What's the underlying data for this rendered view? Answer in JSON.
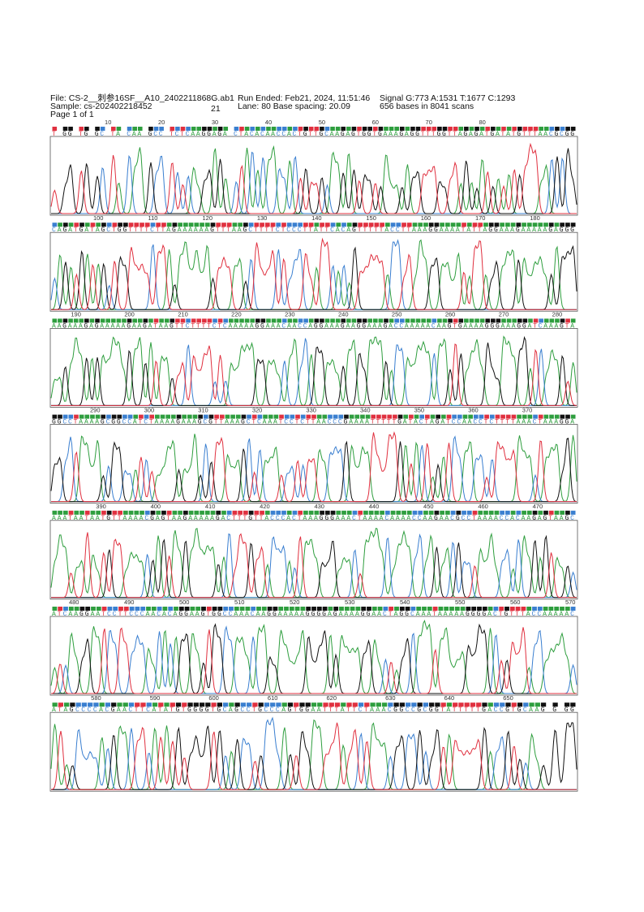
{
  "header": {
    "file": "File: CS-2__刺参16SF__A10_2402211868G.ab1",
    "sample": "Sample: cs-202402218452",
    "page": "Page 1 of 1",
    "number": "21",
    "run_ended": "Run Ended:  Feb21, 2024, 11:51:46",
    "lane": "Lane: 80   Base spacing: 20.09",
    "signal": "Signal G:773 A:1531 T:1677 C:1293",
    "bases_scans": "656 bases in 8041 scans"
  },
  "rows": [
    {
      "positions": [
        10,
        20,
        30,
        40,
        50,
        60,
        70,
        80
      ],
      "bases": "T GG TG GC TA CAA GCC TCTCAAGGAGA CTACACAACCACTGTTGCAAGAGTGGTGAAAGAGGTTTGGTTAGAGATGATATGTTTAACGCGG"
    },
    {
      "positions": [
        100,
        110,
        120,
        130,
        140,
        150,
        160,
        170,
        180
      ],
      "bases": "CAGATGATAGCTGGTTTTCTTAGAAAAAAGTTTAAGCTTTTCTCCCTTATTCACAGTTTTTACCTTAAAGGAAAATATTAGGAAAGAAAAAGAGGG"
    },
    {
      "positions": [
        190,
        200,
        210,
        220,
        230,
        240,
        250,
        260,
        270,
        280
      ],
      "bases": "AAGAAAGAGAAAAAGAAGATAAGTTCTTTTCTCAAAAAGGAAACAACCAGGAAAGAAGGAAAGACCAAAAACAAGTGAAAAGGGAAAGGATCAAAGTA"
    },
    {
      "positions": [
        290,
        300,
        310,
        320,
        330,
        340,
        350,
        360,
        370
      ],
      "bases": "GGCCTAAAAGCGGCCATCTAAAAGAAAGCGTTAAAGCTCAAATCCTCTTAACCCGAAAATTTTTGATACTAGATCCAACCTCTTTTAAACTAAAGGA"
    },
    {
      "positions": [
        390,
        400,
        410,
        420,
        430,
        440,
        450,
        460,
        470
      ],
      "bases": "AAATAATAATGTTAAAACGAGTAAGAAAAAGACTTTGTTACCCACTAAAGGGAAACTAAAACAAAACCAAGAACGCCTAAAACCACAAGAGTAAGC"
    },
    {
      "positions": [
        480,
        490,
        500,
        510,
        520,
        530,
        540,
        550,
        560,
        570
      ],
      "bases": "ATCAAGGAATCCTTCCCAACACAGGAAGTGGCCAAACAAGGAAAAAGGGGAGAAAAGGAACTAGGCAAATAAAAAGGGGACTGTTTACCAAAAAC"
    },
    {
      "positions": [
        580,
        590,
        600,
        610,
        620,
        630,
        640,
        650
      ],
      "bases": "ATAGCCCCACGAACTTCATATGTGGGGTGCAGCCTGCCCAGTGGAATTTATTCTAAACGGCCGCGGTATTTTTGACCGTGCAAG G GG"
    }
  ]
}
